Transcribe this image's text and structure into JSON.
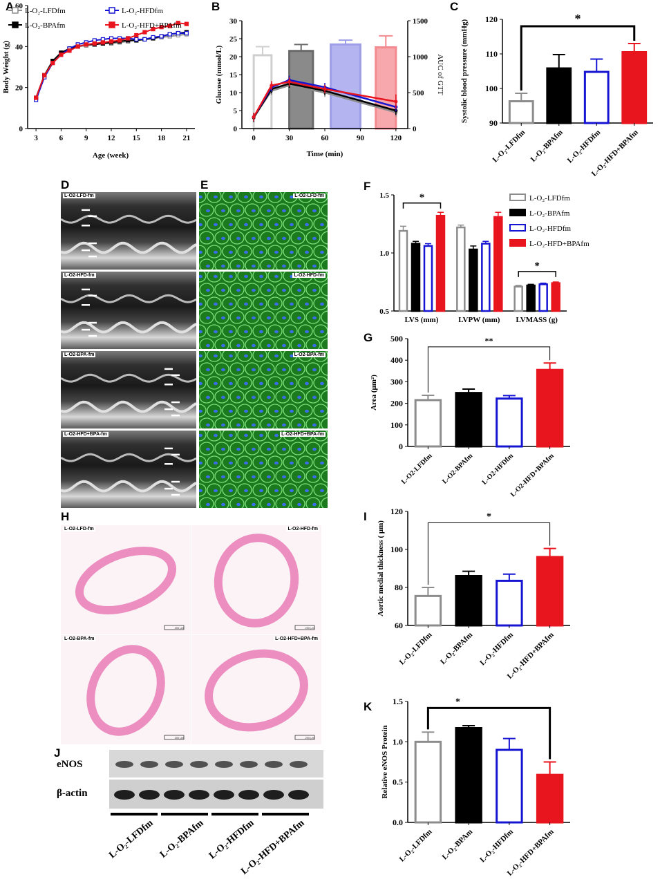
{
  "panels": {
    "A": "A",
    "B": "B",
    "C": "C",
    "D": "D",
    "E": "E",
    "F": "F",
    "G": "G",
    "H": "H",
    "I": "I",
    "J": "J",
    "K": "K"
  },
  "colors": {
    "lfd": "#8c8c8c",
    "bpa": "#000000",
    "hfd": "#1414d2",
    "hfdbpa": "#e8141e",
    "ecg_bg": "#3a3a3a",
    "if_bg": "#1b7a1e",
    "he_bg": "#fbf3f6",
    "he_tissue": "#ec8ec0"
  },
  "legend_A": {
    "lfd": "L-O₂-LFDfm",
    "hfd": "L-O₂-HFDfm",
    "bpa": "L-O₂-BPAfm",
    "hfdbpa": "L-O₂-HFD+BPAfm"
  },
  "legend_F": {
    "lfd": "L-O₂-LFDfm",
    "bpa": "L-O₂-BPAfm",
    "hfd": "L-O₂-HFDfm",
    "hfdbpa": "L-O₂-HFD+BPAfm"
  },
  "groups_sub": [
    "L-O₂-LFDfm",
    "L-O₂-BPAfm",
    "L-O₂-HFDfm",
    "L-O₂-HFD+BPAfm"
  ],
  "groups_G": [
    "L-O2-LFDfm",
    "L-O2-BPAfm",
    "L-O2-HFDfm",
    "L-O2-HFD+BPAfm"
  ],
  "groups_K": [
    "L-O₂-LFDfm",
    "L-O₂-BPAm",
    "L-O₂-HFDfm",
    "L-O₂-HFD+BPAfm"
  ],
  "groups_J": [
    "L-O₂-LFDfm",
    "L-O₂-BPAfm",
    "L-O₂-HFDfm",
    "L-O₂-HFD+BPAfm"
  ],
  "img_D": [
    "L-O2-LFD-fm",
    "L-O2-HFD-fm",
    "L-O2-BPA-fm",
    "L-O2-HFD+BPA-fm"
  ],
  "img_E": [
    "L-O2-LFD-fm",
    "L-O2-HFD-fm",
    "L-O2-BPA-fm",
    "L-O2-HFD+BPA-fm"
  ],
  "img_H": [
    "L-O2-LFD-fm",
    "L-O2-HFD-fm",
    "L-O2-BPA-fm",
    "L-O2-HFD+BPA-fm"
  ],
  "scale_bar": "200 μm",
  "blot": {
    "rows": [
      "eNOS",
      "β-actin"
    ]
  },
  "chart_data": [
    {
      "id": "A",
      "type": "line",
      "xlabel": "Age (week)",
      "ylabel": "Body Weight (g)",
      "xlim": [
        2,
        22
      ],
      "ylim": [
        0,
        60
      ],
      "xticks": [
        3,
        6,
        9,
        12,
        15,
        18,
        21
      ],
      "yticks": [
        0,
        20,
        40,
        60
      ],
      "x": [
        3,
        4,
        5,
        6,
        7,
        8,
        9,
        10,
        11,
        12,
        13,
        14,
        15,
        16,
        17,
        18,
        19,
        20,
        21
      ],
      "series": [
        {
          "key": "lfd",
          "values": [
            15,
            26,
            33,
            37,
            39,
            40,
            40.5,
            41,
            41.5,
            41.5,
            42,
            42.5,
            43,
            43.5,
            44,
            44.5,
            45,
            45.5,
            46
          ]
        },
        {
          "key": "bpa",
          "values": [
            15,
            26,
            33,
            37,
            39,
            40,
            41,
            41,
            41.5,
            42,
            42.5,
            43,
            43,
            43.5,
            44,
            45,
            46,
            46.5,
            47
          ]
        },
        {
          "key": "hfd",
          "values": [
            14,
            25,
            32,
            36,
            39,
            41,
            42,
            43,
            43.5,
            44,
            44,
            44,
            43.5,
            43.5,
            44.5,
            45,
            46,
            46.5,
            46.5
          ]
        },
        {
          "key": "hfdbpa",
          "values": [
            15,
            26,
            32,
            36,
            38,
            40,
            41,
            41.5,
            42,
            42.5,
            43,
            44,
            45.5,
            47,
            48.5,
            49.5,
            50,
            51.5,
            51
          ]
        }
      ]
    },
    {
      "id": "B",
      "type": "bar+line",
      "xlabel": "Time (min)",
      "ylabel": "Glucose (mmol/L)",
      "y2label": "AUC of GTT",
      "ylim": [
        0,
        30
      ],
      "y2lim": [
        0,
        1500
      ],
      "xticks": [
        0,
        30,
        60,
        90,
        120
      ],
      "yticks": [
        0,
        5,
        10,
        15,
        20,
        25,
        30
      ],
      "y2ticks": [
        0,
        500,
        1000,
        1500
      ],
      "auc": {
        "lfd": 1020,
        "bpa": 1080,
        "hfd": 1170,
        "hfdbpa": 1130
      },
      "auc_err": {
        "lfd": 120,
        "bpa": 90,
        "hfd": 60,
        "hfdbpa": 160
      },
      "x": [
        0,
        15,
        30,
        60,
        120
      ],
      "series": [
        {
          "key": "lfd",
          "values": [
            3.2,
            10.5,
            12.0,
            10.0,
            4.5
          ]
        },
        {
          "key": "bpa",
          "values": [
            3.0,
            11.0,
            12.5,
            10.5,
            5.0
          ]
        },
        {
          "key": "hfd",
          "values": [
            3.2,
            11.5,
            13.5,
            11.5,
            6.0
          ]
        },
        {
          "key": "hfdbpa",
          "values": [
            3.2,
            12.0,
            13.0,
            11.0,
            7.5
          ]
        }
      ]
    },
    {
      "id": "C",
      "type": "bar",
      "ylabel": "Systolic blood pressure (mmHg)",
      "ylim": [
        90,
        120
      ],
      "yticks": [
        90,
        100,
        110,
        120
      ],
      "values": [
        96.3,
        105.8,
        104.8,
        110.5
      ],
      "errors": [
        2.3,
        4.0,
        3.7,
        2.5
      ],
      "sig": "*"
    },
    {
      "id": "F",
      "type": "bar",
      "categories": [
        "LVS (mm)",
        "LVPW (mm)",
        "LVMASS (g)"
      ],
      "ylim": [
        0.5,
        1.5
      ],
      "yticks": [
        "0.5",
        "1.0",
        "1.5"
      ],
      "series": [
        {
          "key": "lfd",
          "values": [
            1.19,
            1.22,
            0.71
          ],
          "errors": [
            0.04,
            0.02,
            0.01
          ]
        },
        {
          "key": "bpa",
          "values": [
            1.08,
            1.03,
            0.72
          ],
          "errors": [
            0.02,
            0.03,
            0.01
          ]
        },
        {
          "key": "hfd",
          "values": [
            1.06,
            1.08,
            0.73
          ],
          "errors": [
            0.02,
            0.02,
            0.01
          ]
        },
        {
          "key": "hfdbpa",
          "values": [
            1.32,
            1.31,
            0.74
          ],
          "errors": [
            0.03,
            0.04,
            0.01
          ]
        }
      ],
      "sig": [
        "*",
        "*"
      ]
    },
    {
      "id": "G",
      "type": "bar",
      "ylabel": "Area (μm²)",
      "ylim": [
        0,
        500
      ],
      "yticks": [
        0,
        100,
        200,
        300,
        400,
        500
      ],
      "values": [
        215,
        248,
        222,
        355
      ],
      "errors": [
        22,
        18,
        14,
        32
      ],
      "sig": "**"
    },
    {
      "id": "I",
      "type": "bar",
      "ylabel": "Aortic medial thickness ( μm)",
      "ylim": [
        60,
        120
      ],
      "yticks": [
        60,
        80,
        100,
        120
      ],
      "values": [
        75.5,
        86,
        83.5,
        96
      ],
      "errors": [
        4.5,
        2.5,
        3.5,
        4.5
      ],
      "sig": "*"
    },
    {
      "id": "K",
      "type": "bar",
      "ylabel": "Relative eNOS Protein",
      "ylim": [
        0,
        1.5
      ],
      "yticks": [
        "0.0",
        "0.5",
        "1.0",
        "1.5"
      ],
      "values": [
        1.0,
        1.17,
        0.9,
        0.59
      ],
      "errors": [
        0.12,
        0.03,
        0.14,
        0.16
      ],
      "sig": "*"
    }
  ]
}
